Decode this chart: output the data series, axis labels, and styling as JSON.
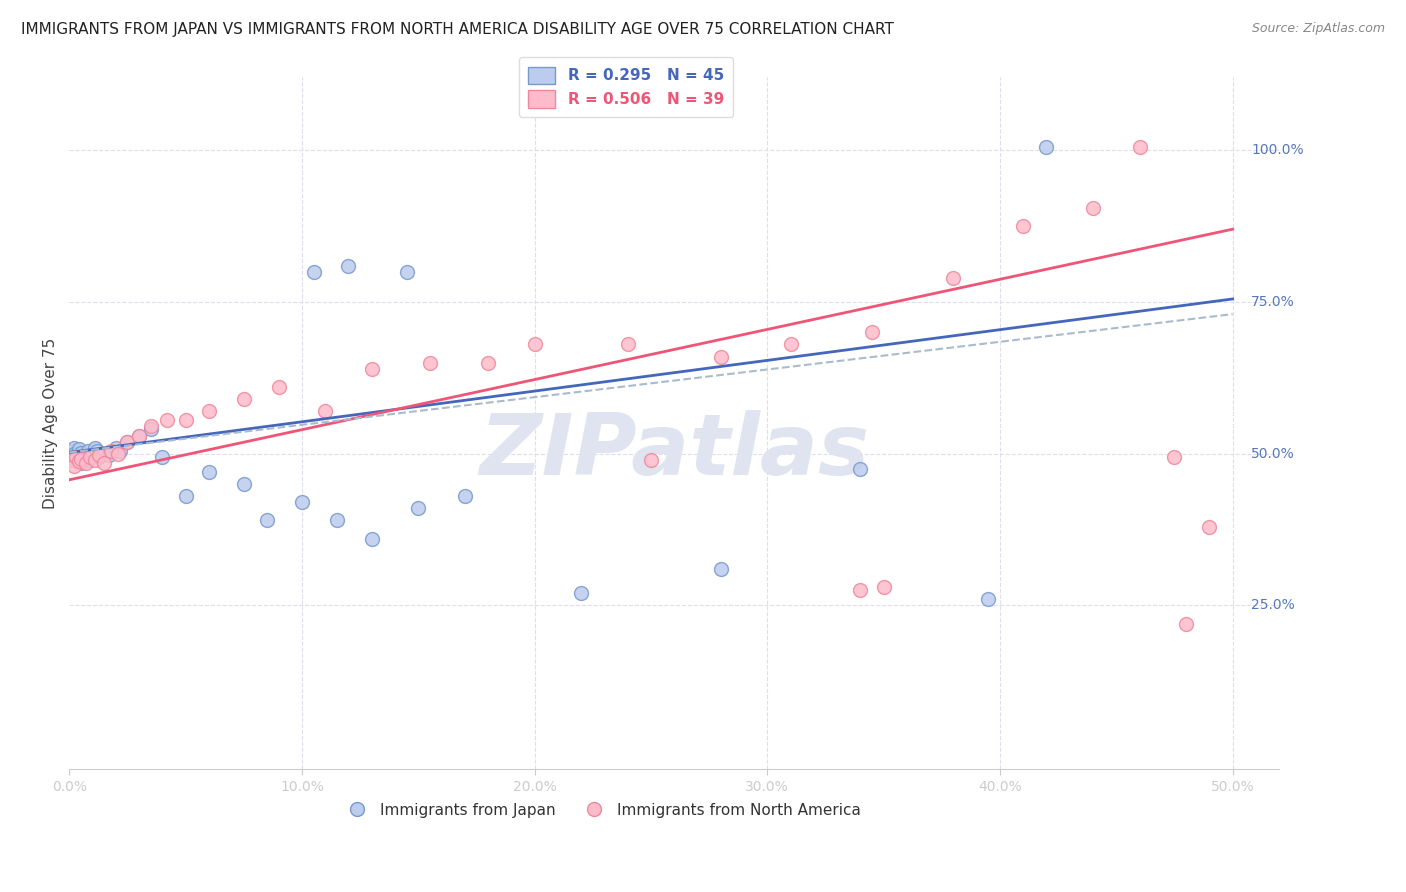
{
  "title": "IMMIGRANTS FROM JAPAN VS IMMIGRANTS FROM NORTH AMERICA DISABILITY AGE OVER 75 CORRELATION CHART",
  "source": "Source: ZipAtlas.com",
  "ylabel": "Disability Age Over 75",
  "xlabel_legend1": "Immigrants from Japan",
  "xlabel_legend2": "Immigrants from North America",
  "legend_blue": "R = 0.295   N = 45",
  "legend_pink": "R = 0.506   N = 39",
  "xlim": [
    0.0,
    0.52
  ],
  "ylim": [
    -0.02,
    1.12
  ],
  "xtick_vals": [
    0.0,
    0.1,
    0.2,
    0.3,
    0.4,
    0.5
  ],
  "xtick_labels": [
    "0.0%",
    "10.0%",
    "20.0%",
    "30.0%",
    "40.0%",
    "50.0%"
  ],
  "ytick_right_vals": [
    0.25,
    0.5,
    0.75,
    1.0
  ],
  "ytick_right_labels": [
    "25.0%",
    "50.0%",
    "75.0%",
    "100.0%"
  ],
  "color_blue_face": "#BBCCEE",
  "color_blue_edge": "#7799CC",
  "color_pink_face": "#FFBBCC",
  "color_pink_edge": "#EE8899",
  "color_blue_line": "#4466BB",
  "color_pink_line": "#EE5577",
  "color_blue_dash": "#AABBCC",
  "color_grid": "#DDDDEE",
  "color_axis": "#CCCCCC",
  "color_right_labels": "#5577BB",
  "color_title": "#222222",
  "color_source": "#888888",
  "color_ylabel": "#444444",
  "watermark_text": "ZIPatlas",
  "watermark_color": "#E0E4F0",
  "title_fontsize": 11,
  "source_fontsize": 9,
  "tick_fontsize": 10,
  "ylabel_fontsize": 11,
  "legend_fontsize": 11,
  "marker_size": 100,
  "line_width": 2.0,
  "blue_x": [
    0.001,
    0.001,
    0.002,
    0.002,
    0.002,
    0.003,
    0.003,
    0.004,
    0.004,
    0.005,
    0.005,
    0.006,
    0.007,
    0.008,
    0.008,
    0.009,
    0.01,
    0.011,
    0.012,
    0.013,
    0.015,
    0.017,
    0.02,
    0.022,
    0.025,
    0.03,
    0.035,
    0.04,
    0.05,
    0.06,
    0.075,
    0.085,
    0.1,
    0.115,
    0.13,
    0.15,
    0.17,
    0.22,
    0.28,
    0.34,
    0.395,
    0.42,
    0.105,
    0.12,
    0.145
  ],
  "blue_y": [
    0.505,
    0.495,
    0.51,
    0.49,
    0.5,
    0.488,
    0.498,
    0.492,
    0.508,
    0.485,
    0.502,
    0.495,
    0.498,
    0.49,
    0.505,
    0.495,
    0.498,
    0.51,
    0.505,
    0.495,
    0.5,
    0.498,
    0.51,
    0.505,
    0.52,
    0.53,
    0.54,
    0.495,
    0.43,
    0.47,
    0.45,
    0.39,
    0.42,
    0.39,
    0.36,
    0.41,
    0.43,
    0.27,
    0.31,
    0.475,
    0.26,
    1.005,
    0.8,
    0.81,
    0.8
  ],
  "pink_x": [
    0.001,
    0.002,
    0.003,
    0.004,
    0.005,
    0.007,
    0.009,
    0.011,
    0.013,
    0.015,
    0.018,
    0.021,
    0.025,
    0.03,
    0.035,
    0.042,
    0.05,
    0.06,
    0.075,
    0.09,
    0.11,
    0.13,
    0.155,
    0.18,
    0.2,
    0.24,
    0.28,
    0.31,
    0.345,
    0.38,
    0.41,
    0.44,
    0.46,
    0.475,
    0.49,
    0.34,
    0.48,
    0.35,
    0.25
  ],
  "pink_y": [
    0.49,
    0.48,
    0.495,
    0.488,
    0.492,
    0.485,
    0.495,
    0.49,
    0.498,
    0.485,
    0.505,
    0.5,
    0.52,
    0.53,
    0.545,
    0.555,
    0.555,
    0.57,
    0.59,
    0.61,
    0.57,
    0.64,
    0.65,
    0.65,
    0.68,
    0.68,
    0.66,
    0.68,
    0.7,
    0.79,
    0.875,
    0.905,
    1.005,
    0.495,
    0.38,
    0.275,
    0.22,
    0.28,
    0.49
  ],
  "blue_line_x0": 0.0,
  "blue_line_x1": 0.5,
  "blue_line_y0": 0.502,
  "blue_line_y1": 0.755,
  "pink_line_y0": 0.457,
  "pink_line_y1": 0.87,
  "dash_line_y0": 0.502,
  "dash_line_y1": 0.73
}
